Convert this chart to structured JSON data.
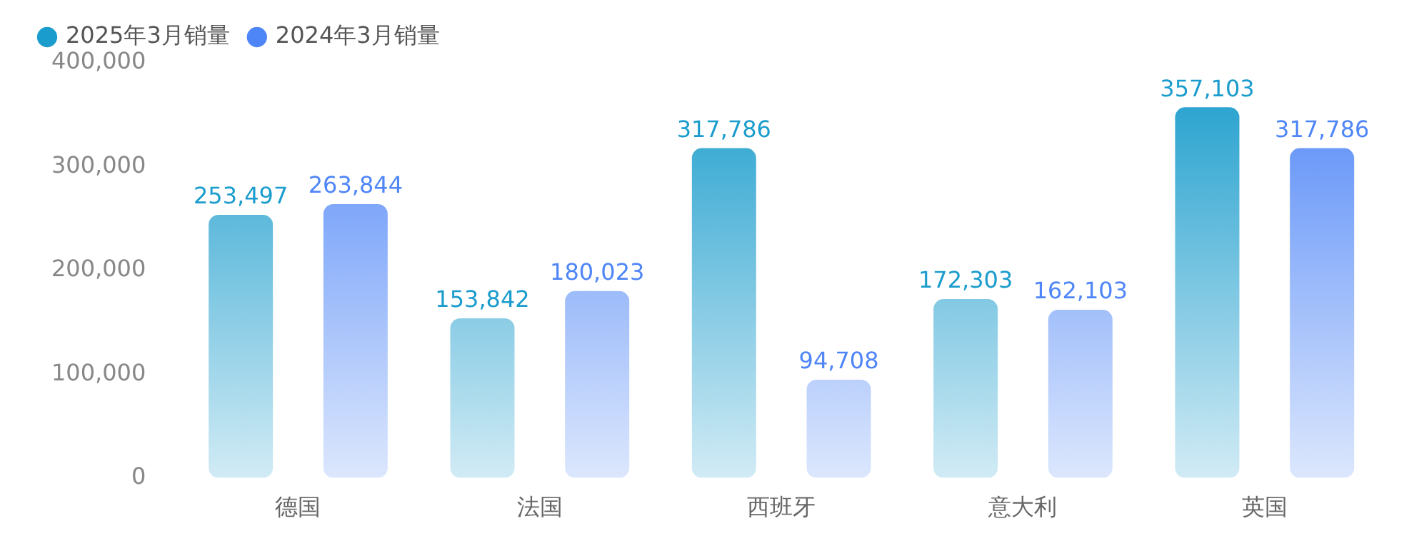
{
  "chart_data": {
    "type": "bar",
    "categories": [
      "德国",
      "法国",
      "西班牙",
      "意大利",
      "英国"
    ],
    "series": [
      {
        "name": "2025年3月销量",
        "color": "#1a9ccc",
        "values": [
          253497,
          153842,
          317786,
          172303,
          357103
        ],
        "value_labels": [
          "253,497",
          "153,842",
          "317,786",
          "172,303",
          "357,103"
        ]
      },
      {
        "name": "2024年3月销量",
        "color": "#4f86f7",
        "values": [
          263844,
          180023,
          94708,
          162103,
          317786
        ],
        "value_labels": [
          "263,844",
          "180,023",
          "94,708",
          "162,103",
          "317,786"
        ]
      }
    ],
    "ylim": [
      0,
      400000
    ],
    "yticks": [
      0,
      {
        "value": 100000,
        "label": "100,000"
      },
      {
        "value": 200000,
        "label": "200,000"
      },
      {
        "value": 300000,
        "label": "300,000"
      },
      {
        "value": 400000,
        "label": "400,000"
      }
    ],
    "grid": false,
    "legend": "top left"
  }
}
